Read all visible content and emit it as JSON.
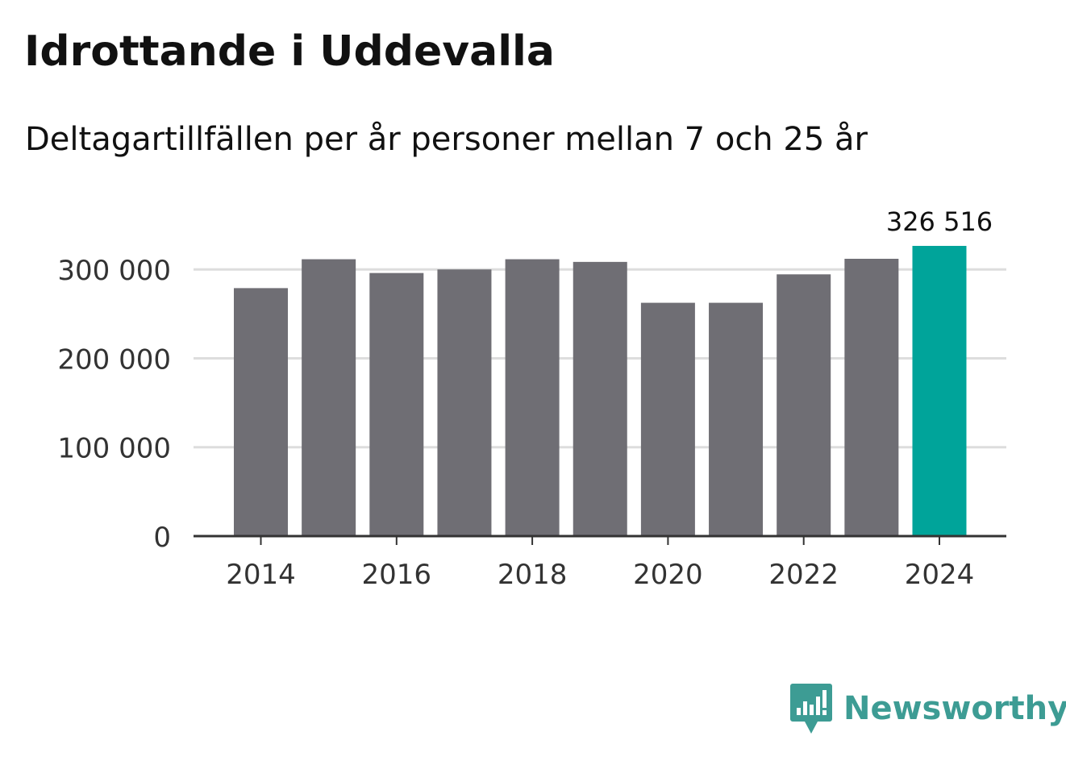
{
  "chart_data": {
    "type": "bar",
    "title": "Idrottande i Uddevalla",
    "subtitle": "Deltagartillfällen per år personer mellan 7 och 25 år",
    "categories": [
      "2014",
      "2015",
      "2016",
      "2017",
      "2018",
      "2019",
      "2020",
      "2021",
      "2022",
      "2023",
      "2024"
    ],
    "values": [
      279000,
      311500,
      296000,
      300000,
      311500,
      308500,
      262500,
      262500,
      294500,
      312000,
      326516
    ],
    "highlight_index": 10,
    "highlight_label": "326 516",
    "x_tick_labels": [
      "2014",
      "2016",
      "2018",
      "2020",
      "2022",
      "2024"
    ],
    "y_tick_values": [
      0,
      100000,
      200000,
      300000
    ],
    "y_tick_labels": [
      "0",
      "100 000",
      "200 000",
      "300 000"
    ],
    "ylim": [
      0,
      326516
    ],
    "xlabel": "",
    "ylabel": "",
    "grid": true,
    "colors": {
      "bar": "#6f6e74",
      "highlight": "#00a49a",
      "grid": "#dddddd",
      "axis": "#333333",
      "tick_text": "#333333"
    }
  },
  "brand": {
    "name": "Newsworthy",
    "color": "#3d9c94",
    "icon": "newsworthy-logo-icon"
  }
}
